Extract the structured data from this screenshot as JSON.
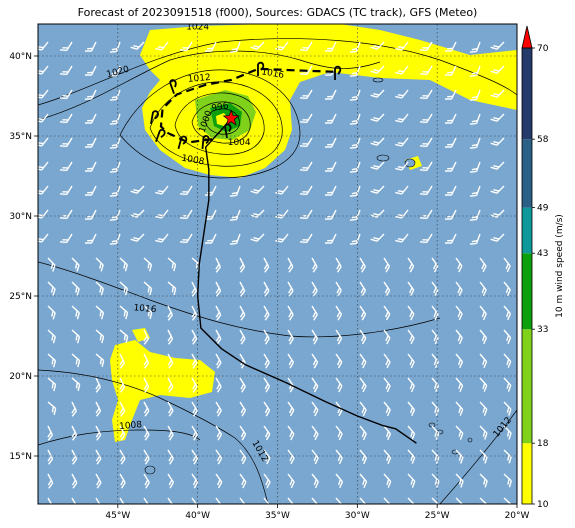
{
  "title": "Forecast of 2023091518 (f000), Sources: GDACS (TC track), GFS (Meteo)",
  "map": {
    "lon_range": [
      -50,
      -20
    ],
    "lat_range": [
      12,
      42
    ],
    "x_ticks": [
      {
        "value": -45,
        "label": "45°W"
      },
      {
        "value": -40,
        "label": "40°W"
      },
      {
        "value": -35,
        "label": "35°W"
      },
      {
        "value": -30,
        "label": "30°W"
      },
      {
        "value": -25,
        "label": "25°W"
      },
      {
        "value": -20,
        "label": "20°W"
      }
    ],
    "y_ticks": [
      {
        "value": 15,
        "label": "15°N"
      },
      {
        "value": 20,
        "label": "20°N"
      },
      {
        "value": 25,
        "label": "25°N"
      },
      {
        "value": 30,
        "label": "30°N"
      },
      {
        "value": 35,
        "label": "35°N"
      },
      {
        "value": 40,
        "label": "40°N"
      }
    ],
    "grid": "dotted",
    "ocean_color": "#7aa7cf"
  },
  "colorbar": {
    "label": "10 m wind speed (m/s)",
    "ticks": [
      "10",
      "18",
      "33",
      "43",
      "49",
      "58",
      "70"
    ],
    "bands": [
      {
        "from": 10,
        "to": 18,
        "color": "#ffff00"
      },
      {
        "from": 18,
        "to": 33,
        "color": "#7fd11a"
      },
      {
        "from": 33,
        "to": 43,
        "color": "#0ca10c"
      },
      {
        "from": 43,
        "to": 49,
        "color": "#0e9a9a"
      },
      {
        "from": 49,
        "to": 58,
        "color": "#2a5f86"
      },
      {
        "from": 58,
        "to": 70,
        "color": "#243a6a"
      }
    ],
    "extend_color": "#ff0000"
  },
  "storm": {
    "center": {
      "lon": -37.9,
      "lat": 36.1
    },
    "track": [
      {
        "lon": -26.3,
        "lat": 15.8
      },
      {
        "lon": -27.6,
        "lat": 16.7
      },
      {
        "lon": -28.4,
        "lat": 16.9
      },
      {
        "lon": -30.0,
        "lat": 17.5
      },
      {
        "lon": -32.0,
        "lat": 18.4
      },
      {
        "lon": -34.5,
        "lat": 19.6
      },
      {
        "lon": -37.0,
        "lat": 20.7
      },
      {
        "lon": -38.5,
        "lat": 21.7
      },
      {
        "lon": -39.8,
        "lat": 23.0
      },
      {
        "lon": -40.0,
        "lat": 25.0
      },
      {
        "lon": -39.9,
        "lat": 27.0
      },
      {
        "lon": -39.6,
        "lat": 29.0
      },
      {
        "lon": -39.3,
        "lat": 31.0
      },
      {
        "lon": -39.3,
        "lat": 32.9
      },
      {
        "lon": -39.5,
        "lat": 34.3
      },
      {
        "lon": -38.5,
        "lat": 35.4
      },
      {
        "lon": -37.9,
        "lat": 36.1
      }
    ],
    "forecast_path": [
      {
        "lon": -39.1,
        "lat": 34.8
      },
      {
        "lon": -40.6,
        "lat": 34.6
      },
      {
        "lon": -41.9,
        "lat": 35.2
      },
      {
        "lon": -42.3,
        "lat": 35.6
      },
      {
        "lon": -42.2,
        "lat": 36.7
      },
      {
        "lon": -41.3,
        "lat": 37.6
      },
      {
        "lon": -39.5,
        "lat": 38.2
      },
      {
        "lon": -37.9,
        "lat": 38.5
      },
      {
        "lon": -36.2,
        "lat": 39.2
      },
      {
        "lon": -33.8,
        "lat": 39.1
      },
      {
        "lon": -31.1,
        "lat": 39.0
      }
    ]
  },
  "isobar_labels": [
    {
      "text": "1024",
      "lon": -40.0,
      "lat": 41.8,
      "angle": 0
    },
    {
      "text": "1020",
      "lon": -45.0,
      "lat": 39.0,
      "angle": -15
    },
    {
      "text": "1012",
      "lon": -39.9,
      "lat": 38.6,
      "angle": -5
    },
    {
      "text": "1016",
      "lon": -35.3,
      "lat": 38.9,
      "angle": 10
    },
    {
      "text": "996",
      "lon": -38.6,
      "lat": 36.8,
      "angle": -10
    },
    {
      "text": "1000",
      "lon": -39.5,
      "lat": 35.9,
      "angle": -70
    },
    {
      "text": "1004",
      "lon": -37.4,
      "lat": 34.6,
      "angle": 0
    },
    {
      "text": "1008",
      "lon": -40.3,
      "lat": 33.5,
      "angle": 10
    },
    {
      "text": "1016",
      "lon": -43.3,
      "lat": 24.2,
      "angle": 5
    },
    {
      "text": "1008",
      "lon": -44.2,
      "lat": 16.9,
      "angle": -5
    },
    {
      "text": "1012",
      "lon": -36.1,
      "lat": 15.3,
      "angle": 60
    },
    {
      "text": "1012",
      "lon": -20.9,
      "lat": 16.8,
      "angle": -50
    }
  ]
}
